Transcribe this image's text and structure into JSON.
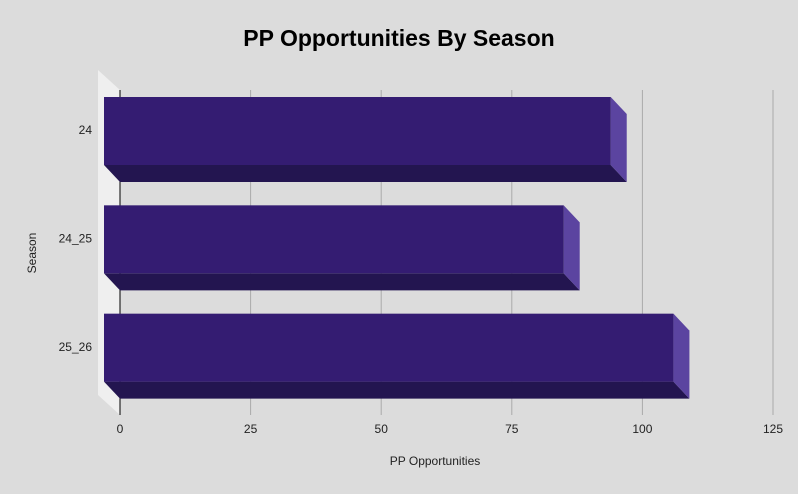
{
  "chart_data": {
    "type": "bar",
    "orientation": "horizontal",
    "title": "PP Opportunities By Season",
    "x_label": "PP Opportunities",
    "y_label": "Season",
    "categories": [
      "24",
      "24_25",
      "25_26"
    ],
    "values": [
      97,
      88,
      109
    ],
    "color": "#341c72",
    "xlim": [
      0,
      125
    ],
    "xticks": [
      0,
      25,
      50,
      75,
      100,
      125
    ],
    "grid": true
  }
}
